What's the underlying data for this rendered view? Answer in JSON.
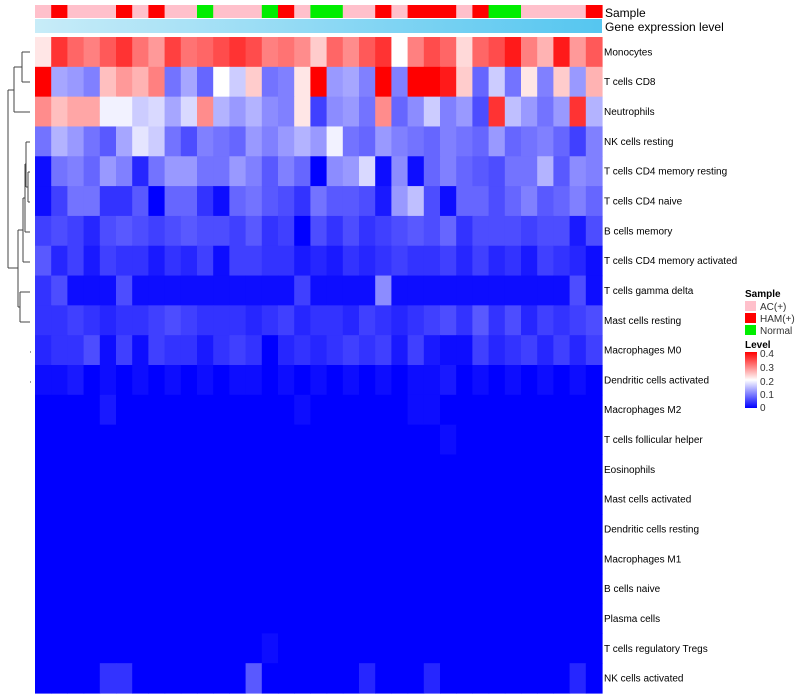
{
  "chart_data": {
    "type": "heatmap",
    "title": "",
    "annotation_tracks": [
      {
        "name": "Sample",
        "label": "Sample"
      },
      {
        "name": "Gene expression level",
        "label": "Gene expression level"
      }
    ],
    "sample_groups": [
      "AC",
      "HAM",
      "AC",
      "AC",
      "AC",
      "HAM",
      "AC",
      "HAM",
      "AC",
      "AC",
      "N",
      "AC",
      "AC",
      "AC",
      "N",
      "HAM",
      "AC",
      "N",
      "N",
      "AC",
      "AC",
      "HAM",
      "AC",
      "HAM",
      "HAM",
      "HAM",
      "AC",
      "HAM",
      "N",
      "N",
      "AC",
      "AC",
      "AC",
      "AC",
      "HAM"
    ],
    "rows": [
      "Monocytes",
      "T cells CD8",
      "Neutrophils",
      "NK cells resting",
      "T cells CD4 memory resting",
      "T cells CD4 naive",
      "B cells memory",
      "T cells CD4 memory activated",
      "T cells gamma delta",
      "Mast cells resting",
      "Macrophages M0",
      "Dendritic cells activated",
      "Macrophages M2",
      "T cells follicular helper",
      "Eosinophils",
      "Mast cells activated",
      "Dendritic cells resting",
      "Macrophages M1",
      "B cells naive",
      "Plasma cells",
      "T cells regulatory  Tregs",
      "NK cells activated"
    ],
    "values": [
      [
        0.22,
        0.36,
        0.32,
        0.3,
        0.33,
        0.36,
        0.31,
        0.28,
        0.35,
        0.31,
        0.32,
        0.34,
        0.36,
        0.34,
        0.3,
        0.31,
        0.29,
        0.24,
        0.32,
        0.29,
        0.33,
        0.36,
        0.2,
        0.3,
        0.34,
        0.32,
        0.23,
        0.32,
        0.34,
        0.38,
        0.3,
        0.26,
        0.38,
        0.28,
        0.33
      ],
      [
        0.4,
        0.13,
        0.12,
        0.1,
        0.25,
        0.28,
        0.26,
        0.3,
        0.09,
        0.13,
        0.08,
        0.2,
        0.16,
        0.24,
        0.09,
        0.1,
        0.22,
        0.4,
        0.12,
        0.13,
        0.1,
        0.4,
        0.1,
        0.4,
        0.4,
        0.38,
        0.24,
        0.08,
        0.16,
        0.09,
        0.22,
        0.1,
        0.24,
        0.12,
        0.26
      ],
      [
        0.29,
        0.25,
        0.27,
        0.27,
        0.19,
        0.19,
        0.16,
        0.17,
        0.13,
        0.17,
        0.29,
        0.14,
        0.12,
        0.14,
        0.11,
        0.1,
        0.22,
        0.05,
        0.11,
        0.12,
        0.09,
        0.29,
        0.08,
        0.11,
        0.16,
        0.1,
        0.12,
        0.06,
        0.36,
        0.15,
        0.12,
        0.09,
        0.12,
        0.36,
        0.14
      ],
      [
        0.09,
        0.14,
        0.12,
        0.09,
        0.07,
        0.13,
        0.18,
        0.16,
        0.09,
        0.06,
        0.1,
        0.09,
        0.08,
        0.12,
        0.1,
        0.12,
        0.14,
        0.12,
        0.19,
        0.09,
        0.08,
        0.12,
        0.1,
        0.09,
        0.08,
        0.1,
        0.09,
        0.08,
        0.12,
        0.08,
        0.09,
        0.1,
        0.08,
        0.05,
        0.1
      ],
      [
        0.01,
        0.09,
        0.1,
        0.08,
        0.12,
        0.1,
        0.03,
        0.09,
        0.12,
        0.12,
        0.09,
        0.09,
        0.12,
        0.1,
        0.07,
        0.1,
        0.08,
        0.0,
        0.11,
        0.12,
        0.17,
        0.01,
        0.11,
        0.01,
        0.08,
        0.1,
        0.08,
        0.07,
        0.06,
        0.09,
        0.09,
        0.14,
        0.07,
        0.11,
        0.1
      ],
      [
        0.01,
        0.05,
        0.09,
        0.09,
        0.04,
        0.04,
        0.07,
        0.0,
        0.08,
        0.08,
        0.04,
        0.01,
        0.08,
        0.09,
        0.07,
        0.06,
        0.04,
        0.09,
        0.07,
        0.07,
        0.06,
        0.02,
        0.12,
        0.15,
        0.06,
        0.01,
        0.08,
        0.08,
        0.06,
        0.08,
        0.1,
        0.07,
        0.08,
        0.1,
        0.08
      ],
      [
        0.05,
        0.06,
        0.05,
        0.03,
        0.06,
        0.07,
        0.06,
        0.05,
        0.06,
        0.07,
        0.06,
        0.06,
        0.05,
        0.07,
        0.04,
        0.05,
        0.0,
        0.06,
        0.04,
        0.06,
        0.04,
        0.05,
        0.06,
        0.07,
        0.06,
        0.08,
        0.04,
        0.06,
        0.06,
        0.06,
        0.05,
        0.06,
        0.06,
        0.02,
        0.06
      ],
      [
        0.07,
        0.03,
        0.05,
        0.02,
        0.05,
        0.04,
        0.04,
        0.02,
        0.04,
        0.03,
        0.05,
        0.01,
        0.05,
        0.05,
        0.04,
        0.04,
        0.02,
        0.03,
        0.02,
        0.04,
        0.03,
        0.04,
        0.05,
        0.04,
        0.04,
        0.05,
        0.03,
        0.05,
        0.03,
        0.04,
        0.02,
        0.05,
        0.04,
        0.03,
        0.01
      ],
      [
        0.04,
        0.06,
        0.01,
        0.01,
        0.01,
        0.06,
        0.01,
        0.01,
        0.01,
        0.01,
        0.01,
        0.01,
        0.01,
        0.01,
        0.01,
        0.01,
        0.05,
        0.01,
        0.01,
        0.01,
        0.01,
        0.11,
        0.01,
        0.01,
        0.01,
        0.01,
        0.01,
        0.01,
        0.01,
        0.01,
        0.01,
        0.01,
        0.01,
        0.06,
        0.01
      ],
      [
        0.04,
        0.04,
        0.05,
        0.04,
        0.03,
        0.04,
        0.04,
        0.05,
        0.06,
        0.05,
        0.04,
        0.04,
        0.04,
        0.03,
        0.04,
        0.05,
        0.03,
        0.04,
        0.04,
        0.03,
        0.05,
        0.04,
        0.03,
        0.04,
        0.05,
        0.06,
        0.04,
        0.07,
        0.04,
        0.06,
        0.03,
        0.05,
        0.04,
        0.05,
        0.06
      ],
      [
        0.03,
        0.04,
        0.04,
        0.06,
        0.01,
        0.05,
        0.01,
        0.05,
        0.04,
        0.04,
        0.02,
        0.04,
        0.05,
        0.04,
        0.0,
        0.03,
        0.04,
        0.03,
        0.04,
        0.05,
        0.04,
        0.05,
        0.02,
        0.05,
        0.02,
        0.01,
        0.01,
        0.05,
        0.03,
        0.04,
        0.05,
        0.03,
        0.05,
        0.03,
        0.05
      ],
      [
        0.01,
        0.01,
        0.02,
        0.0,
        0.01,
        0.0,
        0.01,
        0.0,
        0.01,
        0.0,
        0.01,
        0.0,
        0.01,
        0.01,
        0.0,
        0.01,
        0.0,
        0.01,
        0.0,
        0.01,
        0.0,
        0.01,
        0.0,
        0.01,
        0.01,
        0.02,
        0.0,
        0.01,
        0.0,
        0.01,
        0.0,
        0.01,
        0.0,
        0.01,
        0.0
      ],
      [
        0.0,
        0.0,
        0.0,
        0.0,
        0.02,
        0.0,
        0.0,
        0.0,
        0.0,
        0.0,
        0.0,
        0.0,
        0.0,
        0.0,
        0.0,
        0.0,
        0.01,
        0.0,
        0.0,
        0.0,
        0.0,
        0.0,
        0.0,
        0.01,
        0.01,
        0.0,
        0.0,
        0.0,
        0.0,
        0.0,
        0.0,
        0.0,
        0.0,
        0.0,
        0.0
      ],
      [
        0.0,
        0.0,
        0.0,
        0.0,
        0.0,
        0.0,
        0.0,
        0.0,
        0.0,
        0.0,
        0.0,
        0.0,
        0.0,
        0.0,
        0.0,
        0.0,
        0.0,
        0.0,
        0.0,
        0.0,
        0.0,
        0.0,
        0.0,
        0.0,
        0.0,
        0.01,
        0.0,
        0.0,
        0.0,
        0.0,
        0.0,
        0.0,
        0.0,
        0.0,
        0.0
      ],
      [
        0.0,
        0.0,
        0.0,
        0.0,
        0.0,
        0.0,
        0.0,
        0.0,
        0.0,
        0.0,
        0.0,
        0.0,
        0.0,
        0.0,
        0.0,
        0.0,
        0.0,
        0.0,
        0.0,
        0.0,
        0.0,
        0.0,
        0.0,
        0.0,
        0.0,
        0.0,
        0.0,
        0.0,
        0.0,
        0.0,
        0.0,
        0.0,
        0.0,
        0.0,
        0.0
      ],
      [
        0.0,
        0.0,
        0.0,
        0.0,
        0.0,
        0.0,
        0.0,
        0.0,
        0.0,
        0.0,
        0.0,
        0.0,
        0.0,
        0.0,
        0.0,
        0.0,
        0.0,
        0.0,
        0.0,
        0.0,
        0.0,
        0.0,
        0.0,
        0.0,
        0.0,
        0.0,
        0.0,
        0.0,
        0.0,
        0.0,
        0.0,
        0.0,
        0.0,
        0.0,
        0.0
      ],
      [
        0.0,
        0.0,
        0.0,
        0.0,
        0.0,
        0.0,
        0.0,
        0.0,
        0.0,
        0.0,
        0.0,
        0.0,
        0.0,
        0.0,
        0.0,
        0.0,
        0.0,
        0.0,
        0.0,
        0.0,
        0.0,
        0.0,
        0.0,
        0.0,
        0.0,
        0.0,
        0.0,
        0.0,
        0.0,
        0.0,
        0.0,
        0.0,
        0.0,
        0.0,
        0.0
      ],
      [
        0.0,
        0.0,
        0.0,
        0.0,
        0.0,
        0.0,
        0.0,
        0.0,
        0.0,
        0.0,
        0.0,
        0.0,
        0.0,
        0.0,
        0.0,
        0.0,
        0.0,
        0.0,
        0.0,
        0.0,
        0.0,
        0.0,
        0.0,
        0.0,
        0.0,
        0.0,
        0.0,
        0.0,
        0.0,
        0.0,
        0.0,
        0.0,
        0.0,
        0.0,
        0.0
      ],
      [
        0.0,
        0.0,
        0.0,
        0.0,
        0.0,
        0.0,
        0.0,
        0.0,
        0.0,
        0.0,
        0.0,
        0.0,
        0.0,
        0.0,
        0.0,
        0.0,
        0.0,
        0.0,
        0.0,
        0.0,
        0.0,
        0.0,
        0.0,
        0.0,
        0.0,
        0.0,
        0.0,
        0.0,
        0.0,
        0.0,
        0.0,
        0.0,
        0.0,
        0.0,
        0.0
      ],
      [
        0.0,
        0.0,
        0.0,
        0.0,
        0.0,
        0.0,
        0.0,
        0.0,
        0.0,
        0.0,
        0.0,
        0.0,
        0.0,
        0.0,
        0.0,
        0.0,
        0.0,
        0.0,
        0.0,
        0.0,
        0.0,
        0.0,
        0.0,
        0.0,
        0.0,
        0.0,
        0.0,
        0.0,
        0.0,
        0.0,
        0.0,
        0.0,
        0.0,
        0.0,
        0.0
      ],
      [
        0.0,
        0.0,
        0.0,
        0.0,
        0.0,
        0.0,
        0.0,
        0.0,
        0.0,
        0.0,
        0.0,
        0.0,
        0.0,
        0.0,
        0.01,
        0.0,
        0.0,
        0.0,
        0.0,
        0.0,
        0.0,
        0.0,
        0.0,
        0.0,
        0.0,
        0.0,
        0.0,
        0.0,
        0.0,
        0.0,
        0.0,
        0.0,
        0.0,
        0.0,
        0.0
      ],
      [
        0.0,
        0.0,
        0.0,
        0.0,
        0.04,
        0.04,
        0.0,
        0.0,
        0.0,
        0.0,
        0.0,
        0.0,
        0.0,
        0.07,
        0.0,
        0.0,
        0.0,
        0.0,
        0.0,
        0.0,
        0.03,
        0.0,
        0.0,
        0.0,
        0.03,
        0.0,
        0.0,
        0.0,
        0.0,
        0.0,
        0.0,
        0.0,
        0.0,
        0.03,
        0.0
      ]
    ],
    "color_scale": {
      "min": 0,
      "mid": 0.2,
      "max": 0.4,
      "low": "#0000ff",
      "midcolor": "#ffffff",
      "high": "#ff0000"
    },
    "legend": {
      "sample_title": "Sample",
      "sample_items": [
        {
          "key": "AC",
          "label": "AC(+)",
          "color": "#ffc0cb"
        },
        {
          "key": "HAM",
          "label": "HAM(+)",
          "color": "#ff0000"
        },
        {
          "key": "N",
          "label": "Normal",
          "color": "#00ee00"
        }
      ],
      "level_title": "Level",
      "level_ticks": [
        "0.4",
        "0.3",
        "0.2",
        "0.1",
        "0"
      ],
      "placement": "right"
    },
    "expression_track_colors": [
      "#c8ecf8",
      "#55c6f0"
    ]
  }
}
